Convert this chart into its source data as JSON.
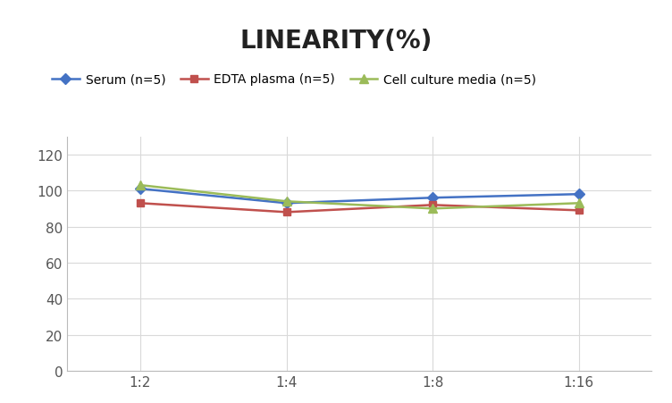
{
  "title": "LINEARITY(%)",
  "x_labels": [
    "1:2",
    "1:4",
    "1:8",
    "1:16"
  ],
  "x_positions": [
    0,
    1,
    2,
    3
  ],
  "series": [
    {
      "label": "Serum (n=5)",
      "values": [
        101,
        93,
        96,
        98
      ],
      "color": "#4472C4",
      "marker": "D",
      "markersize": 6,
      "linewidth": 1.8
    },
    {
      "label": "EDTA plasma (n=5)",
      "values": [
        93,
        88,
        92,
        89
      ],
      "color": "#C0504D",
      "marker": "s",
      "markersize": 6,
      "linewidth": 1.8
    },
    {
      "label": "Cell culture media (n=5)",
      "values": [
        103,
        94,
        90,
        93
      ],
      "color": "#9BBB59",
      "marker": "^",
      "markersize": 7,
      "linewidth": 1.8
    }
  ],
  "ylim": [
    0,
    130
  ],
  "yticks": [
    0,
    20,
    40,
    60,
    80,
    100,
    120
  ],
  "title_fontsize": 20,
  "legend_fontsize": 10,
  "tick_fontsize": 11,
  "background_color": "#ffffff",
  "grid_color": "#d9d9d9"
}
